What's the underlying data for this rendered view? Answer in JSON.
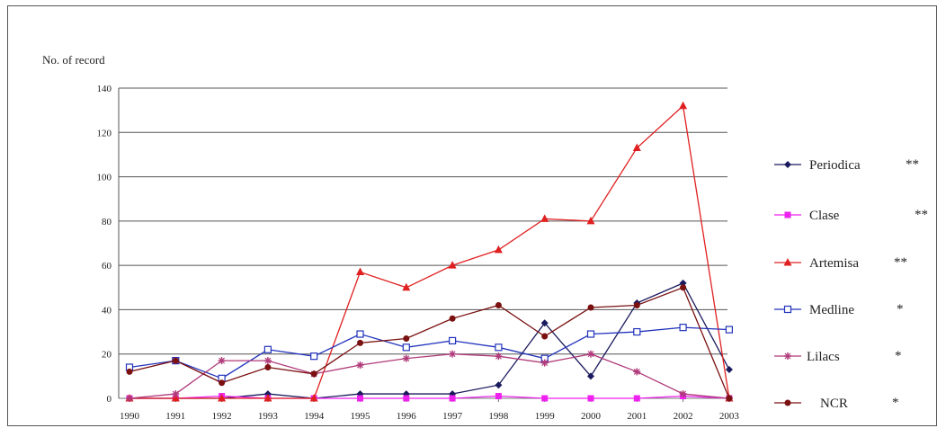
{
  "chart_data": {
    "type": "line",
    "ylabel": "No. of record",
    "xlabel": "",
    "title": "",
    "ylim": [
      0,
      140
    ],
    "yticks": [
      0,
      20,
      40,
      60,
      80,
      100,
      120,
      140
    ],
    "grid": "horizontal",
    "legend_position": "right",
    "categories": [
      "1990",
      "1991",
      "1992",
      "1993",
      "1994",
      "1995",
      "1996",
      "1997",
      "1998",
      "1999",
      "2000",
      "2001",
      "2002",
      "2003"
    ],
    "series": [
      {
        "name": "Periodica",
        "mark": "**",
        "color": "#1a1a5e",
        "marker": "diamond",
        "values": [
          0,
          0,
          0,
          2,
          0,
          2,
          2,
          2,
          6,
          34,
          10,
          43,
          52,
          13
        ]
      },
      {
        "name": "Clase",
        "mark": "**",
        "color": "#ee22ee",
        "marker": "square",
        "values": [
          0,
          0,
          1,
          0,
          0,
          0,
          0,
          0,
          1,
          0,
          0,
          0,
          1,
          0
        ]
      },
      {
        "name": "Artemisa",
        "mark": "**",
        "color": "#e02020",
        "marker": "triangle",
        "values": [
          0,
          0,
          0,
          0,
          0,
          57,
          50,
          60,
          67,
          81,
          80,
          113,
          132,
          0
        ]
      },
      {
        "name": "Medline",
        "mark": "*",
        "color": "#2233bb",
        "marker": "open-square",
        "values": [
          14,
          17,
          9,
          22,
          19,
          29,
          23,
          26,
          23,
          18,
          29,
          30,
          32,
          31
        ]
      },
      {
        "name": "Lilacs",
        "mark": "*",
        "color": "#b03a7a",
        "marker": "star",
        "values": [
          0,
          2,
          17,
          17,
          11,
          15,
          18,
          20,
          19,
          16,
          20,
          12,
          2,
          0
        ]
      },
      {
        "name": "NCR",
        "mark": "*",
        "color": "#7a1010",
        "marker": "circle",
        "values": [
          12,
          17,
          7,
          14,
          11,
          25,
          27,
          36,
          42,
          28,
          41,
          42,
          50,
          0
        ]
      }
    ]
  }
}
